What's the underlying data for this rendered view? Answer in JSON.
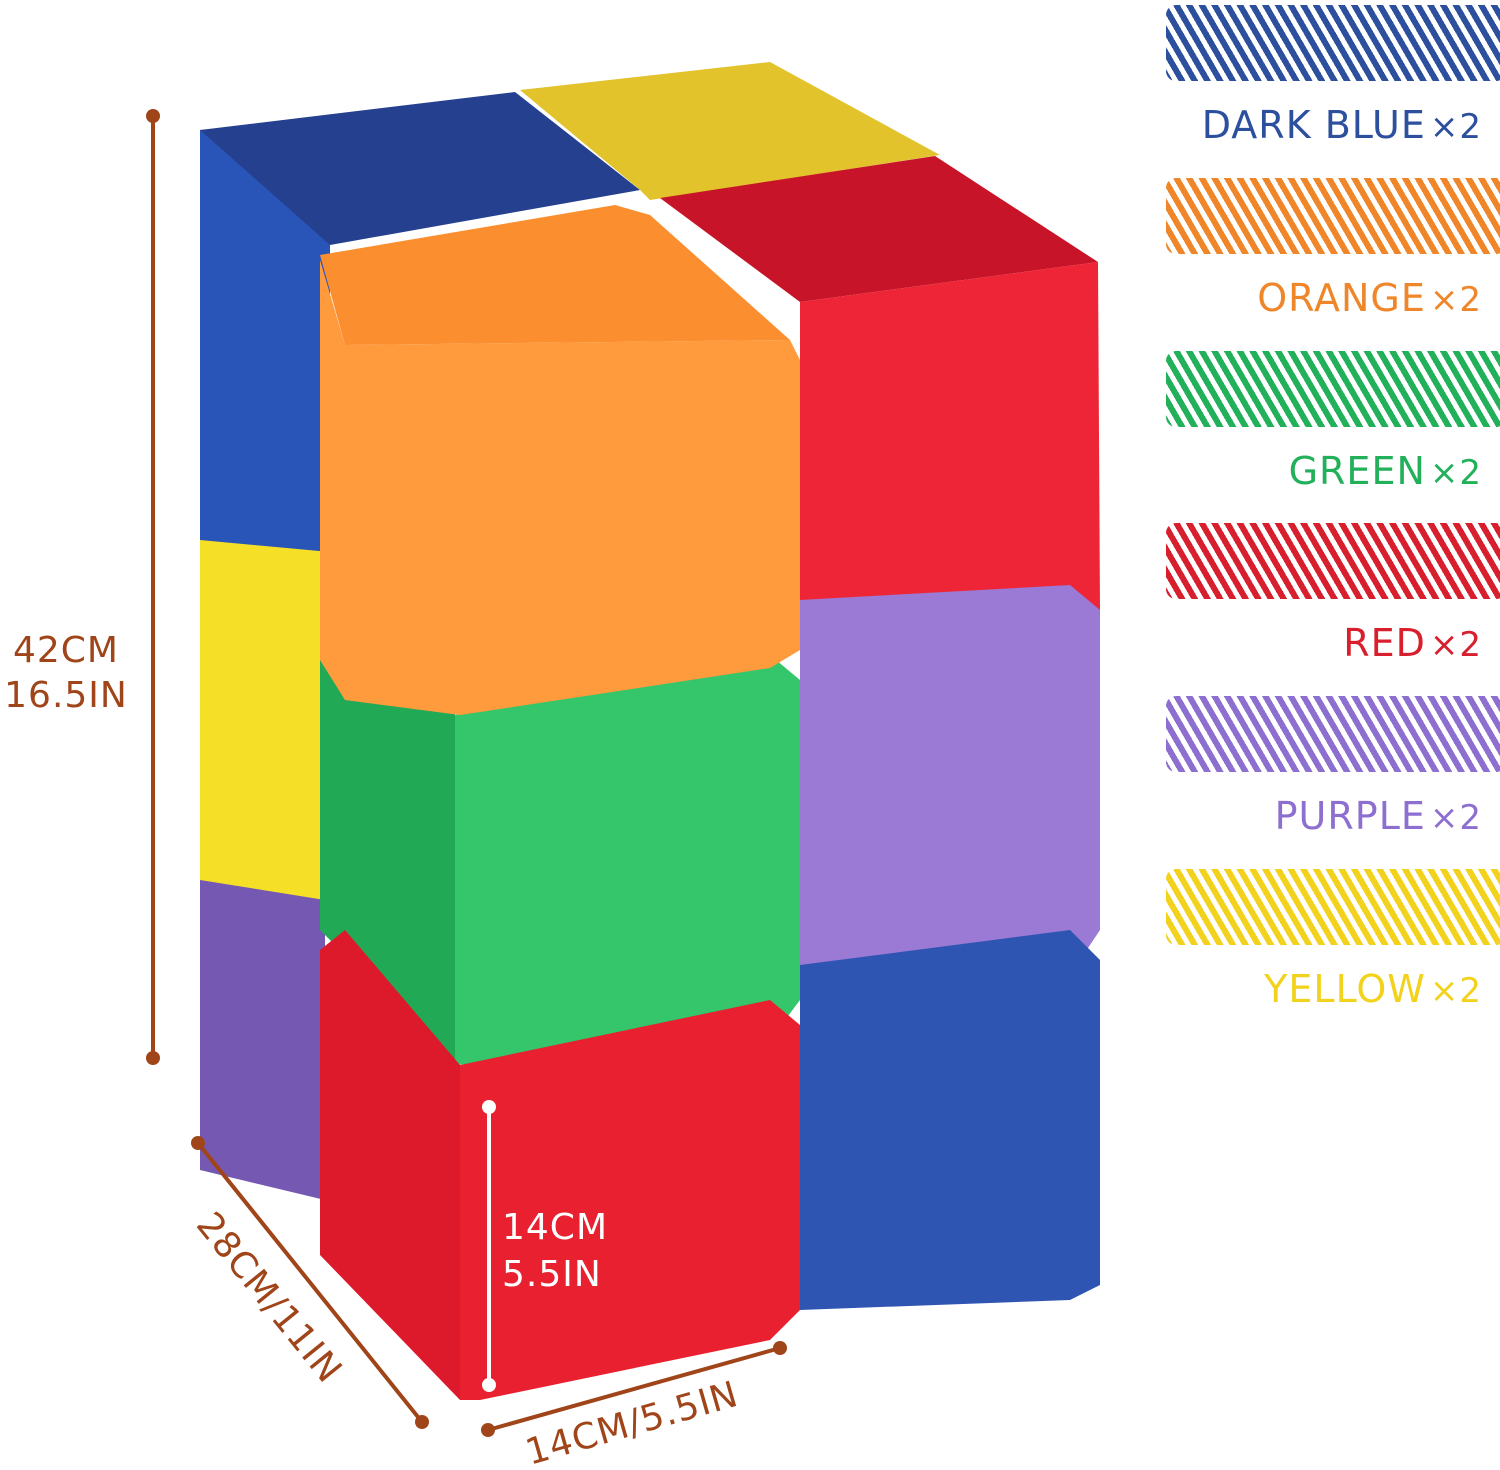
{
  "legend": [
    {
      "name": "DARK BLUE",
      "mult": "×2",
      "color": "#2c4f9e"
    },
    {
      "name": "ORANGE",
      "mult": "×2",
      "color": "#f0862a"
    },
    {
      "name": "GREEN",
      "mult": "×2",
      "color": "#23b05a"
    },
    {
      "name": "RED",
      "mult": "×2",
      "color": "#d81f2e"
    },
    {
      "name": "PURPLE",
      "mult": "×2",
      "color": "#8d6fd0"
    },
    {
      "name": "YELLOW",
      "mult": "×2",
      "color": "#f2d21c"
    }
  ],
  "dimensions": {
    "height_cm": "42CM",
    "height_in": "16.5IN",
    "depth": "28CM/11IN",
    "width": "14CM/5.5IN",
    "cube_cm": "14CM",
    "cube_in": "5.5IN",
    "annotation_color": "#a0451a"
  }
}
